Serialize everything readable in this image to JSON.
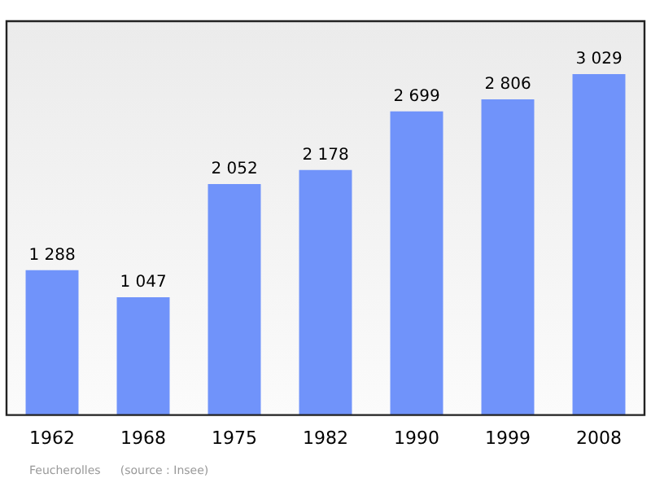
{
  "chart_data": {
    "type": "bar",
    "categories": [
      "1962",
      "1968",
      "1975",
      "1982",
      "1990",
      "1999",
      "2008"
    ],
    "values": [
      1288,
      1047,
      2052,
      2178,
      2699,
      2806,
      3029
    ],
    "value_labels": [
      "1 288",
      "1 047",
      "2 052",
      "2 178",
      "2 699",
      "2 806",
      "3 029"
    ],
    "color": "#7093fa",
    "legend": false,
    "grid": false,
    "annotations": [
      "Feucherolles",
      "(source : Insee)"
    ]
  }
}
